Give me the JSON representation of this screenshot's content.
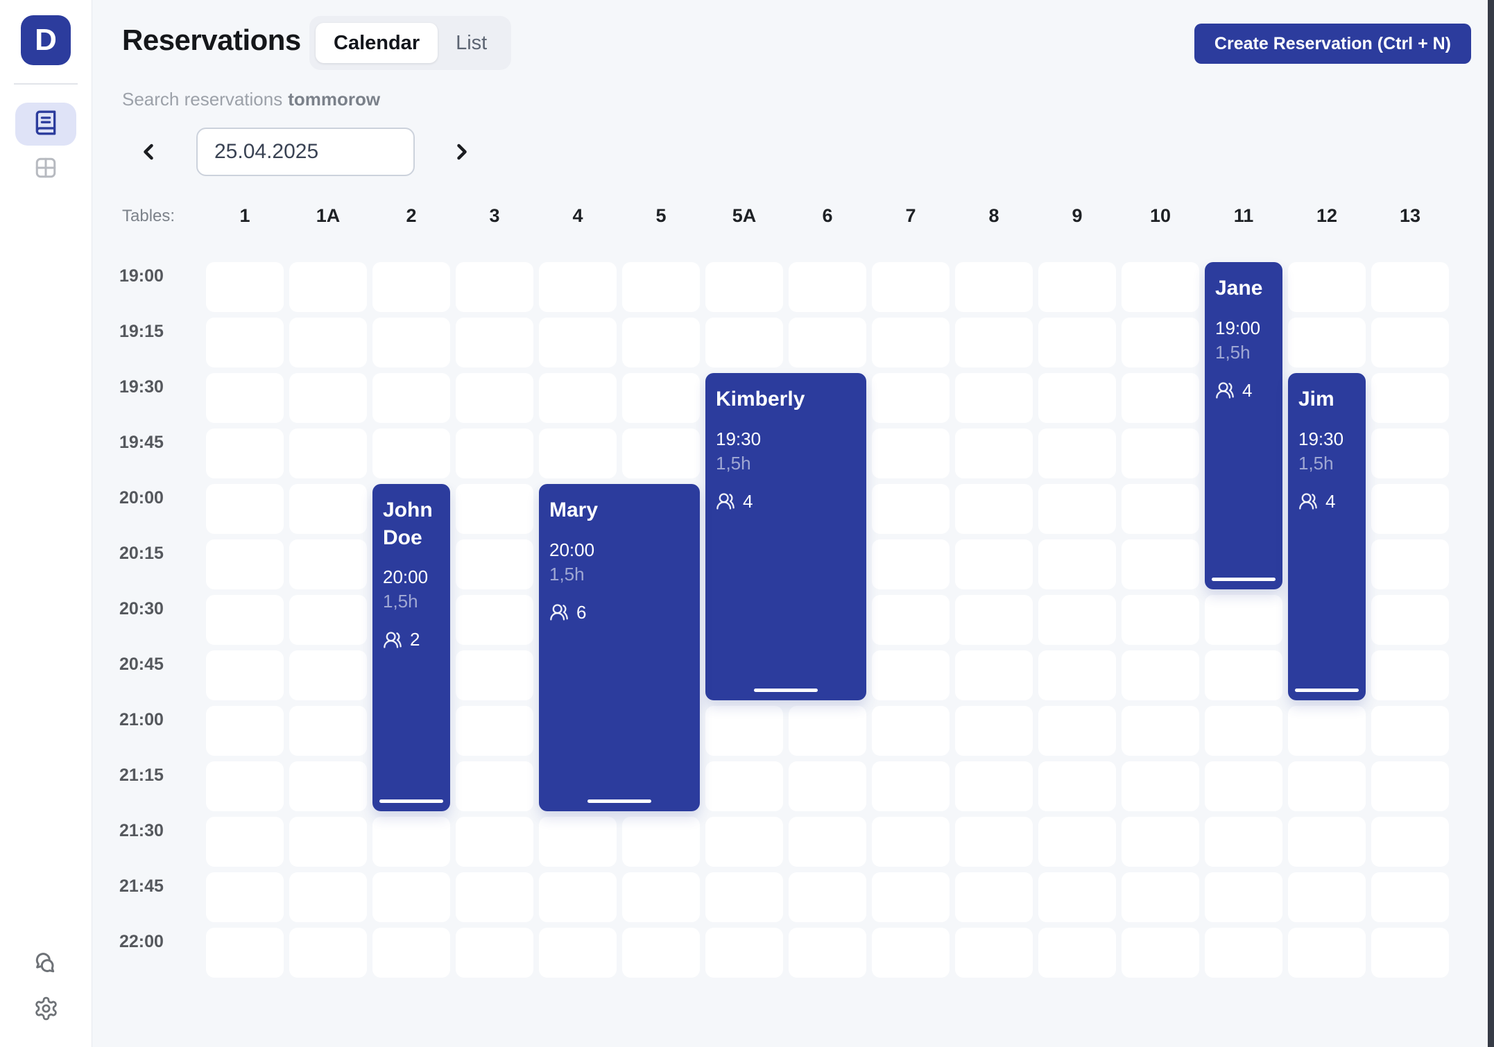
{
  "colors": {
    "accent": "#2c3c9d",
    "accent_light_bg": "#dfe3f7",
    "cell_bg": "#ffffff",
    "page_bg": "#f5f7fa"
  },
  "sidebar": {
    "logo_letter": "D",
    "nav": [
      {
        "icon": "book-icon",
        "active": true
      },
      {
        "icon": "grid-icon",
        "active": false
      }
    ],
    "footer": [
      {
        "icon": "chat-icon"
      },
      {
        "icon": "gear-icon"
      }
    ]
  },
  "header": {
    "title": "Reservations",
    "tabs": [
      {
        "label": "Calendar",
        "active": true
      },
      {
        "label": "List",
        "active": false
      }
    ],
    "create_button_label": "Create Reservation (Ctrl + N)"
  },
  "search": {
    "prefix": "Search reservations",
    "highlight": "tommorow"
  },
  "date_nav": {
    "value": "25.04.2025",
    "prev_icon": "chevron-left-icon",
    "next_icon": "chevron-right-icon"
  },
  "calendar": {
    "tables_label": "Tables:",
    "columns": [
      "1",
      "1A",
      "2",
      "3",
      "4",
      "5",
      "5A",
      "6",
      "7",
      "8",
      "9",
      "10",
      "11",
      "12",
      "13"
    ],
    "times": [
      "19:00",
      "19:15",
      "19:30",
      "19:45",
      "20:00",
      "20:15",
      "20:30",
      "20:45",
      "21:00",
      "21:15",
      "21:30",
      "21:45",
      "22:00"
    ],
    "slot_minutes": 15,
    "guests_icon": "users-icon",
    "reservations": [
      {
        "name": "Jane",
        "start": "19:00",
        "duration_label": "1,5h",
        "duration_hours": 1.5,
        "guests": 4,
        "tables": [
          "11"
        ]
      },
      {
        "name": "Jim",
        "start": "19:30",
        "duration_label": "1,5h",
        "duration_hours": 1.5,
        "guests": 4,
        "tables": [
          "12"
        ]
      },
      {
        "name": "Kimberly",
        "start": "19:30",
        "duration_label": "1,5h",
        "duration_hours": 1.5,
        "guests": 4,
        "tables": [
          "5A",
          "6"
        ]
      },
      {
        "name": "Mary",
        "start": "20:00",
        "duration_label": "1,5h",
        "duration_hours": 1.5,
        "guests": 6,
        "tables": [
          "4",
          "5"
        ]
      },
      {
        "name": "John Doe",
        "start": "20:00",
        "duration_label": "1,5h",
        "duration_hours": 1.5,
        "guests": 2,
        "tables": [
          "2"
        ]
      }
    ]
  }
}
